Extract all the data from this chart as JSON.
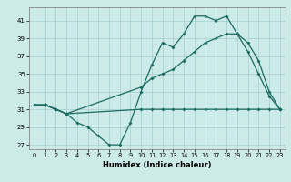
{
  "xlabel": "Humidex (Indice chaleur)",
  "background_color": "#cceae7",
  "grid_color": "#aad4d0",
  "line_color": "#1a6b62",
  "xlim": [
    -0.5,
    23.5
  ],
  "ylim": [
    26.5,
    42.5
  ],
  "yticks": [
    27,
    29,
    31,
    33,
    35,
    37,
    39,
    41
  ],
  "xticks": [
    0,
    1,
    2,
    3,
    4,
    5,
    6,
    7,
    8,
    9,
    10,
    11,
    12,
    13,
    14,
    15,
    16,
    17,
    18,
    19,
    20,
    21,
    22,
    23
  ],
  "line1_x": [
    0,
    1,
    2,
    3,
    4,
    5,
    6,
    7,
    8,
    9,
    10,
    11,
    12,
    13,
    14,
    15,
    16,
    17,
    18,
    19,
    20,
    21,
    22,
    23
  ],
  "line1_y": [
    31.5,
    31.5,
    31.0,
    30.5,
    29.5,
    29.0,
    28.0,
    27.0,
    27.0,
    29.5,
    33.0,
    36.0,
    38.5,
    38.0,
    39.5,
    41.5,
    41.5,
    41.0,
    41.5,
    39.5,
    37.5,
    35.0,
    32.5,
    31.0
  ],
  "line2_x": [
    0,
    1,
    2,
    3,
    10,
    11,
    12,
    13,
    14,
    15,
    16,
    17,
    18,
    19,
    20,
    21,
    22,
    23
  ],
  "line2_y": [
    31.5,
    31.5,
    31.0,
    30.5,
    31.0,
    31.0,
    31.0,
    31.0,
    31.0,
    31.0,
    31.0,
    31.0,
    31.0,
    31.0,
    31.0,
    31.0,
    31.0,
    31.0
  ],
  "line3_x": [
    0,
    1,
    2,
    3,
    10,
    11,
    12,
    13,
    14,
    15,
    16,
    17,
    18,
    19,
    20,
    21,
    22,
    23
  ],
  "line3_y": [
    31.5,
    31.5,
    31.0,
    30.5,
    33.5,
    34.5,
    35.0,
    35.5,
    36.5,
    37.5,
    38.5,
    39.0,
    39.5,
    39.5,
    38.5,
    36.5,
    33.0,
    31.0
  ]
}
